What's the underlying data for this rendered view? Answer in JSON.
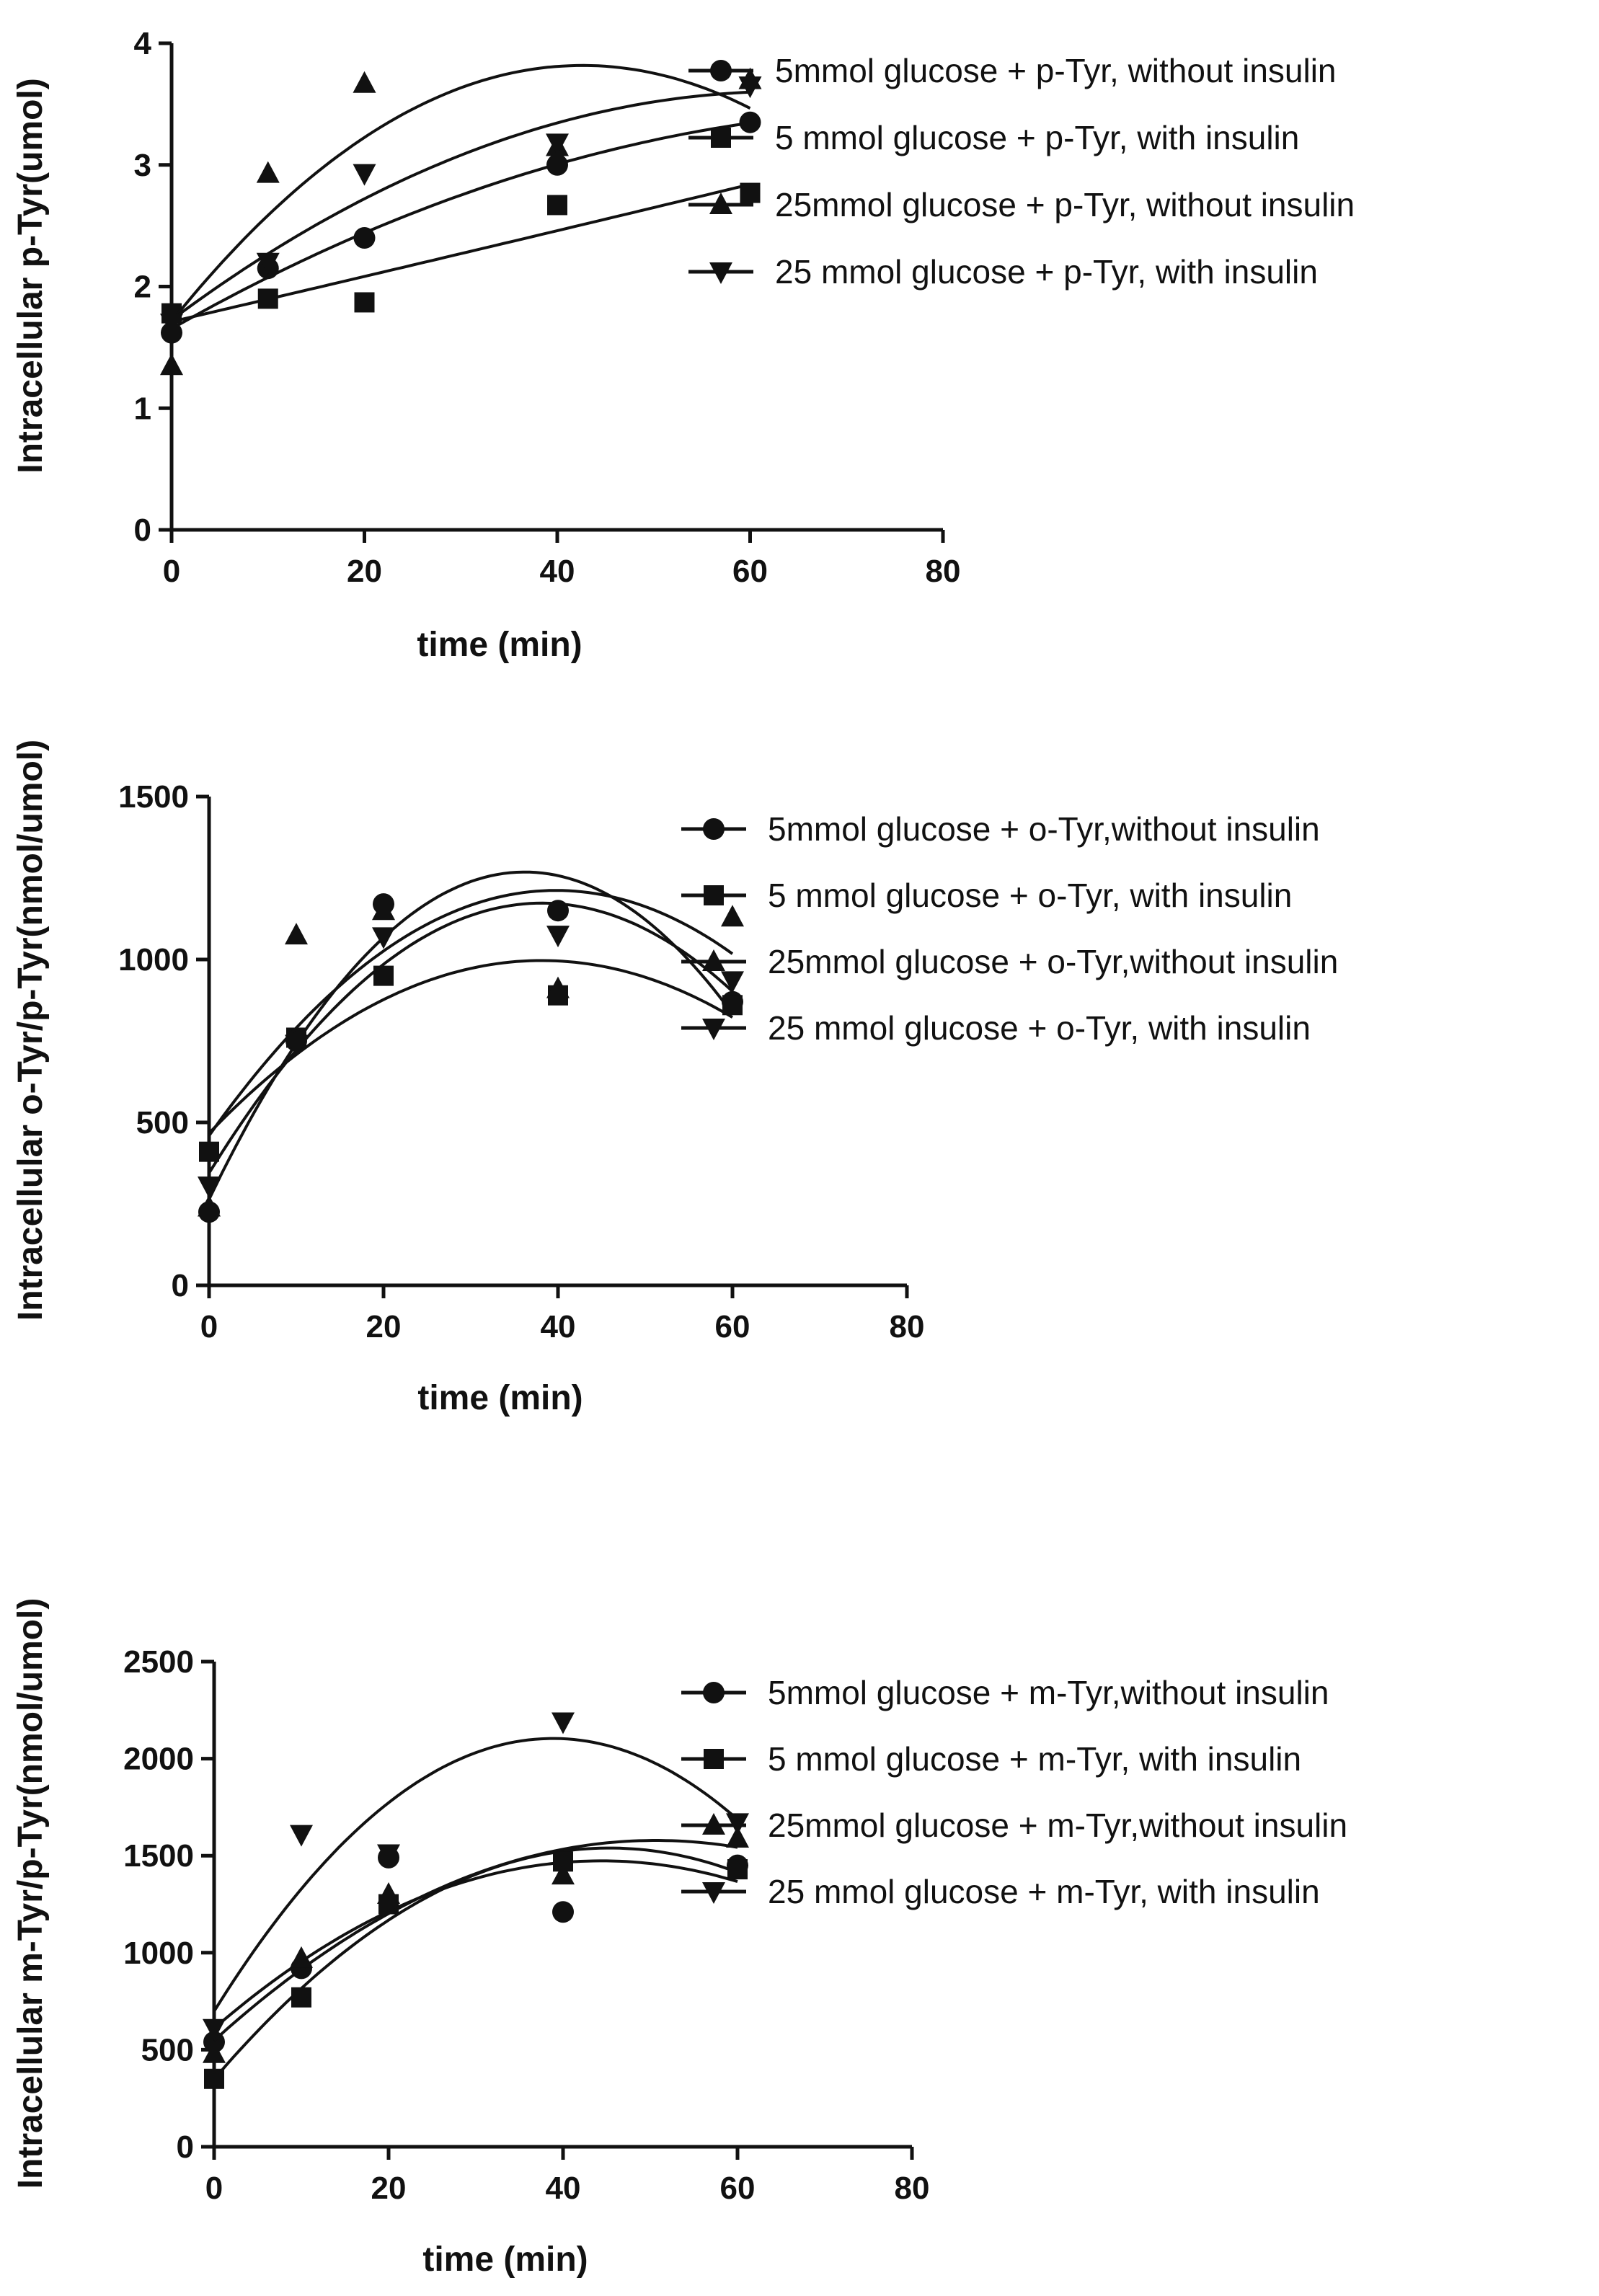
{
  "chart_data": [
    {
      "type": "scatter",
      "ylabel": "Intracellular p-Tyr(umol)",
      "xlabel": "time (min)",
      "xlim": [
        0,
        80
      ],
      "ylim": [
        0,
        4
      ],
      "xticks": [
        "0",
        "20",
        "40",
        "60",
        "80"
      ],
      "yticks": [
        "0",
        "1",
        "2",
        "3",
        "4"
      ],
      "legend_position": "top-right",
      "x": [
        0,
        10,
        20,
        40,
        60
      ],
      "series": [
        {
          "name": "5mmol glucose + p-Tyr, without insulin",
          "marker": "circle",
          "values": [
            1.62,
            2.15,
            2.4,
            3.0,
            3.35
          ]
        },
        {
          "name": "5 mmol glucose + p-Tyr, with insulin",
          "marker": "square",
          "values": [
            1.78,
            1.9,
            1.87,
            2.67,
            2.77
          ]
        },
        {
          "name": "25mmol glucose + p-Tyr, without insulin",
          "marker": "triangle-up",
          "values": [
            1.35,
            2.93,
            3.67,
            3.15,
            3.7
          ]
        },
        {
          "name": "25 mmol glucose + p-Tyr, with insulin",
          "marker": "triangle-down",
          "values": [
            1.7,
            2.2,
            2.93,
            3.18,
            3.65
          ]
        }
      ]
    },
    {
      "type": "scatter",
      "ylabel": "Intracellular o-Tyr/p-Tyr(nmol/umol)",
      "xlabel": "time (min)",
      "xlim": [
        0,
        80
      ],
      "ylim": [
        0,
        1500
      ],
      "xticks": [
        "0",
        "20",
        "40",
        "60",
        "80"
      ],
      "yticks": [
        "0",
        "500",
        "1000",
        "1500"
      ],
      "legend_position": "top-right",
      "x": [
        0,
        10,
        20,
        40,
        60
      ],
      "series": [
        {
          "name": "5mmol glucose + o-Tyr,without insulin",
          "marker": "circle",
          "values": [
            225,
            750,
            1170,
            1150,
            870
          ]
        },
        {
          "name": "5 mmol glucose + o-Tyr, with insulin",
          "marker": "square",
          "values": [
            410,
            760,
            950,
            890,
            860
          ]
        },
        {
          "name": "25mmol glucose + o-Tyr,without insulin",
          "marker": "triangle-up",
          "values": [
            240,
            1075,
            1150,
            910,
            1130
          ]
        },
        {
          "name": "25 mmol glucose + o-Tyr, with insulin",
          "marker": "triangle-down",
          "values": [
            305,
            740,
            1070,
            1075,
            935
          ]
        }
      ]
    },
    {
      "type": "scatter",
      "ylabel": "Intracellular m-Tyr/p-Tyr(nmol/umol)",
      "xlabel": "time (min)",
      "xlim": [
        0,
        80
      ],
      "ylim": [
        0,
        2500
      ],
      "xticks": [
        "0",
        "20",
        "40",
        "60",
        "80"
      ],
      "yticks": [
        "0",
        "500",
        "1000",
        "1500",
        "2000",
        "2500"
      ],
      "legend_position": "top-right",
      "x": [
        0,
        10,
        20,
        40,
        60
      ],
      "series": [
        {
          "name": "5mmol glucose + m-Tyr,without insulin",
          "marker": "circle",
          "values": [
            540,
            920,
            1490,
            1210,
            1450
          ]
        },
        {
          "name": "5 mmol glucose + m-Tyr, with insulin",
          "marker": "square",
          "values": [
            350,
            770,
            1250,
            1470,
            1430
          ]
        },
        {
          "name": "25mmol glucose + m-Tyr,without insulin",
          "marker": "triangle-up",
          "values": [
            480,
            970,
            1300,
            1400,
            1590
          ]
        },
        {
          "name": "25 mmol glucose + m-Tyr, with insulin",
          "marker": "triangle-down",
          "values": [
            610,
            1610,
            1510,
            2190,
            1670
          ]
        }
      ]
    }
  ]
}
